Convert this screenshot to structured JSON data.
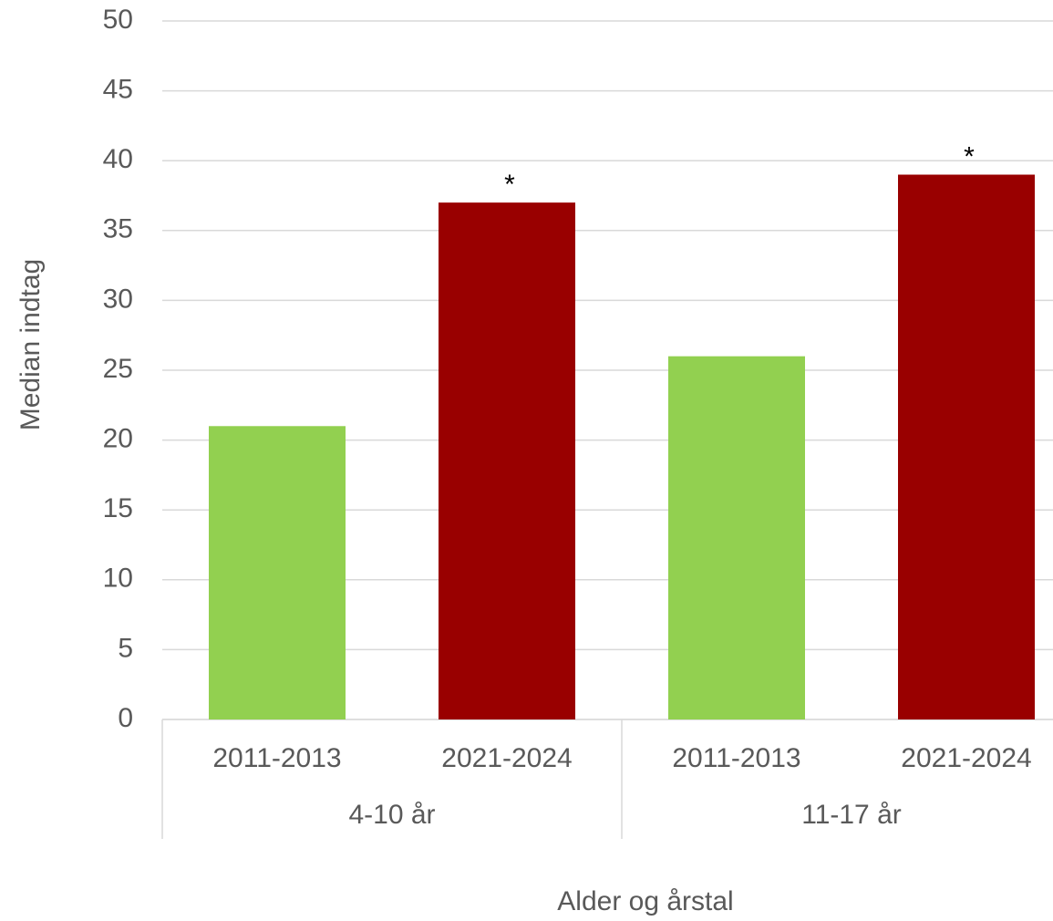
{
  "chart_data": {
    "type": "bar",
    "x_label": "Alder og årstal",
    "y_label": "Median indtag",
    "categories": [
      "2011-2013",
      "2021-2024",
      "2011-2013",
      "2021-2024"
    ],
    "groups": [
      "4-10 år",
      "11-17 år"
    ],
    "values": [
      21,
      37,
      26,
      39
    ],
    "colors": [
      "#92d050",
      "#990000",
      "#92d050",
      "#990000"
    ],
    "significance": [
      null,
      "*",
      null,
      "*"
    ],
    "ylim": [
      0,
      50
    ],
    "yticks": [
      0,
      5,
      10,
      15,
      20,
      25,
      30,
      35,
      40,
      45,
      50
    ],
    "grid": true
  }
}
